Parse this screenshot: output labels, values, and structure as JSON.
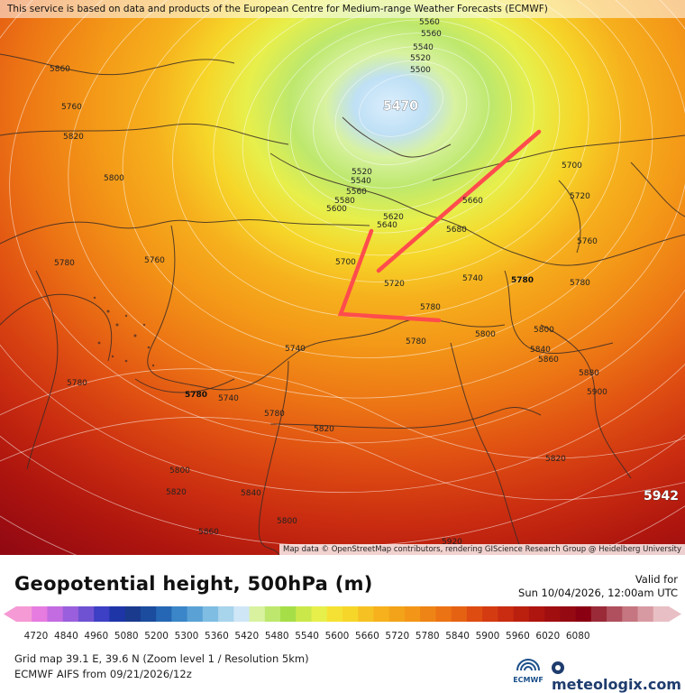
{
  "map": {
    "attribution_top": "This service is based on data and products of the European Centre for Medium-range Weather Forecasts (ECMWF)",
    "attribution_bottom": "Map data © OpenStreetMap contributors, rendering GIScience Research Group @ Heidelberg University",
    "extremes": {
      "low": "5470",
      "high": "5942"
    },
    "contour_labels": [
      "5560",
      "5560",
      "5540",
      "5520",
      "5500",
      "5470",
      "5520",
      "5540",
      "5560",
      "5580",
      "5600",
      "5620",
      "5640",
      "5660",
      "5680",
      "5700",
      "5700",
      "5720",
      "5720",
      "5740",
      "5760",
      "5760",
      "5780",
      "5780",
      "5780",
      "5780",
      "5780",
      "5780",
      "5780",
      "5800",
      "5800",
      "5800",
      "5800",
      "5820",
      "5820",
      "5820",
      "5840",
      "5840",
      "5860",
      "5860",
      "5860",
      "5880",
      "5900",
      "5920",
      "5740",
      "5740",
      "5760",
      "5780",
      "5800",
      "5820"
    ],
    "colors": {
      "low_center": "#cfe6f7",
      "high_center": "#8a0012",
      "arrow": "#ff4c4c",
      "borders": "#3a2a26"
    }
  },
  "legend": {
    "title": "Geopotential height, 500hPa (m)",
    "valid_label": "Valid for",
    "valid_time": "Sun 10/04/2026, 12:00am UTC",
    "ticks": [
      "4720",
      "4840",
      "4960",
      "5080",
      "5200",
      "5300",
      "5360",
      "5420",
      "5480",
      "5540",
      "5600",
      "5660",
      "5720",
      "5780",
      "5840",
      "5900",
      "5960",
      "6020",
      "6080"
    ],
    "grid_info": "Grid map 39.1 E, 39.6 N (Zoom level 1 / Resolution 5km)",
    "model_info": "ECMWF AIFS from  09/21/2026/12z",
    "brand_ecmwf": "ECMWF",
    "brand_meteologix": "meteologix.com"
  }
}
